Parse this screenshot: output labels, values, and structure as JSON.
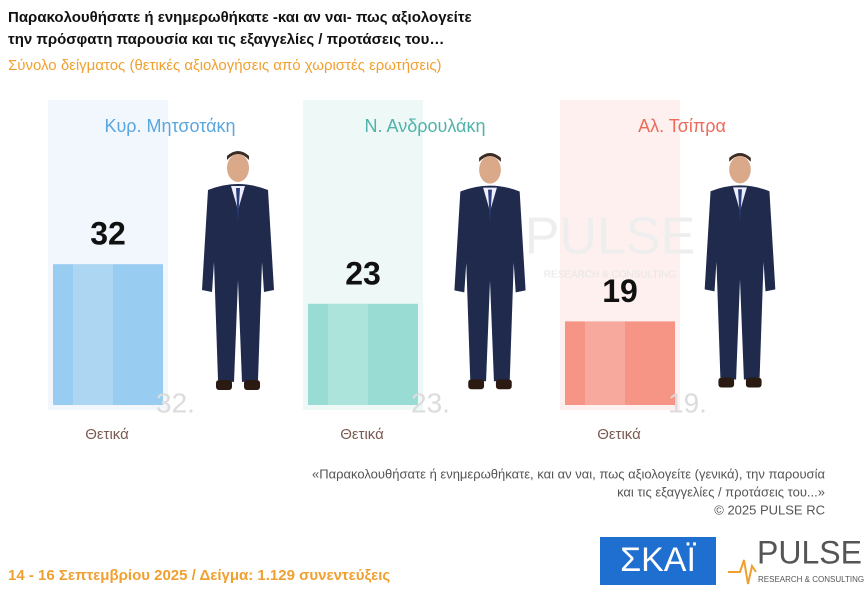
{
  "chart_data": {
    "type": "bar",
    "title": [
      "Παρακολουθήσατε ή ενημερωθήκατε -και αν ναι- πως αξιολογείτε",
      "την πρόσφατη παρουσία και τις εξαγγελίες / προτάσεις του…"
    ],
    "subtitle": "Σύνολο δείγματος  (θετικές αξιολογήσεις από χωριστές ερωτήσεις)",
    "categories": [
      "Κυρ. Μητσοτάκη",
      "Ν. Ανδρουλάκη",
      "Αλ. Τσίπρα"
    ],
    "series": [
      {
        "name": "Θετικά",
        "values": [
          32,
          23,
          19
        ],
        "value_labels": [
          "32.",
          "23.",
          "19."
        ]
      }
    ],
    "colors": [
      "#8fc6f0",
      "#8ed8cf",
      "#f5897a"
    ],
    "label_colors": [
      "#5aa6df",
      "#4fb3aa",
      "#ef6a5a"
    ],
    "note": [
      "«Παρακολουθήσατε ή ενημερωθήκατε, και αν ναι, πως αξιολογείτε (γενικά), την παρουσία",
      "και τις εξαγγελίες / προτάσεις του...»",
      "©  2025  PULSE RC"
    ],
    "footer": "14 - 16 Σεπτεμβρίου 2025  /  Δείγμα:  1.129 συνεντεύξεις",
    "logos": {
      "skai": "ΣΚΑΪ",
      "pulse": "PULSE",
      "pulse_sub": "RESEARCH & CONSULTING"
    }
  }
}
